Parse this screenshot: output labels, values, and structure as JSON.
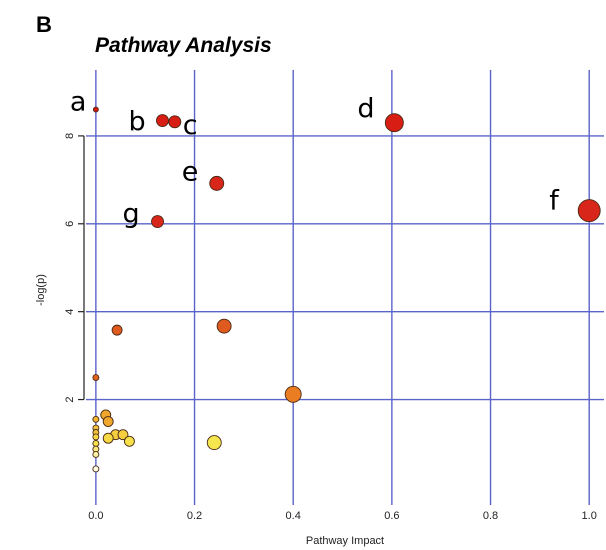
{
  "panel_label": "B",
  "chart_data": {
    "type": "scatter",
    "title": "Pathway Analysis",
    "xlabel": "Pathway Impact",
    "ylabel": "-log(p)",
    "xlim": [
      -0.02,
      1.03
    ],
    "ylim": [
      -0.4,
      9.5
    ],
    "x_ticks": [
      0.0,
      0.2,
      0.4,
      0.6,
      0.8,
      1.0
    ],
    "x_tick_labels": [
      "0.0",
      "0.2",
      "0.4",
      "0.6",
      "0.8",
      "1.0"
    ],
    "y_ticks": [
      2,
      4,
      6,
      8
    ],
    "y_tick_labels": [
      "2",
      "4",
      "6",
      "8"
    ],
    "grid": true,
    "grid_color": "#5a63c9",
    "frame": "left-axis-only",
    "color_scale": "yellow-orange-red by -log(p)",
    "points": [
      {
        "label": "a",
        "x": 0.0,
        "y": 8.6,
        "color": "#d21a12",
        "size": 2.5
      },
      {
        "label": "b",
        "x": 0.135,
        "y": 8.35,
        "color": "#d81d14",
        "size": 6
      },
      {
        "label": "c",
        "x": 0.16,
        "y": 8.32,
        "color": "#d81d14",
        "size": 6
      },
      {
        "label": "d",
        "x": 0.605,
        "y": 8.3,
        "color": "#d81d14",
        "size": 9
      },
      {
        "label": "e",
        "x": 0.245,
        "y": 6.92,
        "color": "#d8261a",
        "size": 7
      },
      {
        "label": "f",
        "x": 1.0,
        "y": 6.3,
        "color": "#d8261a",
        "size": 11
      },
      {
        "label": "g",
        "x": 0.125,
        "y": 6.05,
        "color": "#d8261a",
        "size": 6
      },
      {
        "label": "",
        "x": 0.26,
        "y": 3.67,
        "color": "#de5a1e",
        "size": 7
      },
      {
        "label": "",
        "x": 0.043,
        "y": 3.58,
        "color": "#de5a1e",
        "size": 5
      },
      {
        "label": "",
        "x": 0.0,
        "y": 2.5,
        "color": "#e0621f",
        "size": 3
      },
      {
        "label": "",
        "x": 0.4,
        "y": 2.12,
        "color": "#ea7d22",
        "size": 8
      },
      {
        "label": "",
        "x": 0.02,
        "y": 1.65,
        "color": "#efa82d",
        "size": 5
      },
      {
        "label": "",
        "x": 0.0,
        "y": 1.55,
        "color": "#f1b533",
        "size": 3
      },
      {
        "label": "",
        "x": 0.025,
        "y": 1.5,
        "color": "#efa82d",
        "size": 5
      },
      {
        "label": "",
        "x": 0.0,
        "y": 1.35,
        "color": "#f3c43b",
        "size": 3
      },
      {
        "label": "",
        "x": 0.0,
        "y": 1.25,
        "color": "#f3c43b",
        "size": 3
      },
      {
        "label": "",
        "x": 0.0,
        "y": 1.15,
        "color": "#f6d843",
        "size": 3
      },
      {
        "label": "",
        "x": 0.04,
        "y": 1.2,
        "color": "#f5cf40",
        "size": 5
      },
      {
        "label": "",
        "x": 0.055,
        "y": 1.2,
        "color": "#f5cf40",
        "size": 5
      },
      {
        "label": "",
        "x": 0.025,
        "y": 1.12,
        "color": "#f6d843",
        "size": 5
      },
      {
        "label": "",
        "x": 0.068,
        "y": 1.05,
        "color": "#f7e04a",
        "size": 5
      },
      {
        "label": "",
        "x": 0.24,
        "y": 1.02,
        "color": "#f5e64f",
        "size": 7
      },
      {
        "label": "",
        "x": 0.0,
        "y": 1.0,
        "color": "#f7e04a",
        "size": 3
      },
      {
        "label": "",
        "x": 0.0,
        "y": 0.87,
        "color": "#f9ea7a",
        "size": 3
      },
      {
        "label": "",
        "x": 0.0,
        "y": 0.75,
        "color": "#fbf2a6",
        "size": 3
      },
      {
        "label": "",
        "x": 0.0,
        "y": 0.42,
        "color": "#fffce6",
        "size": 3
      }
    ]
  }
}
